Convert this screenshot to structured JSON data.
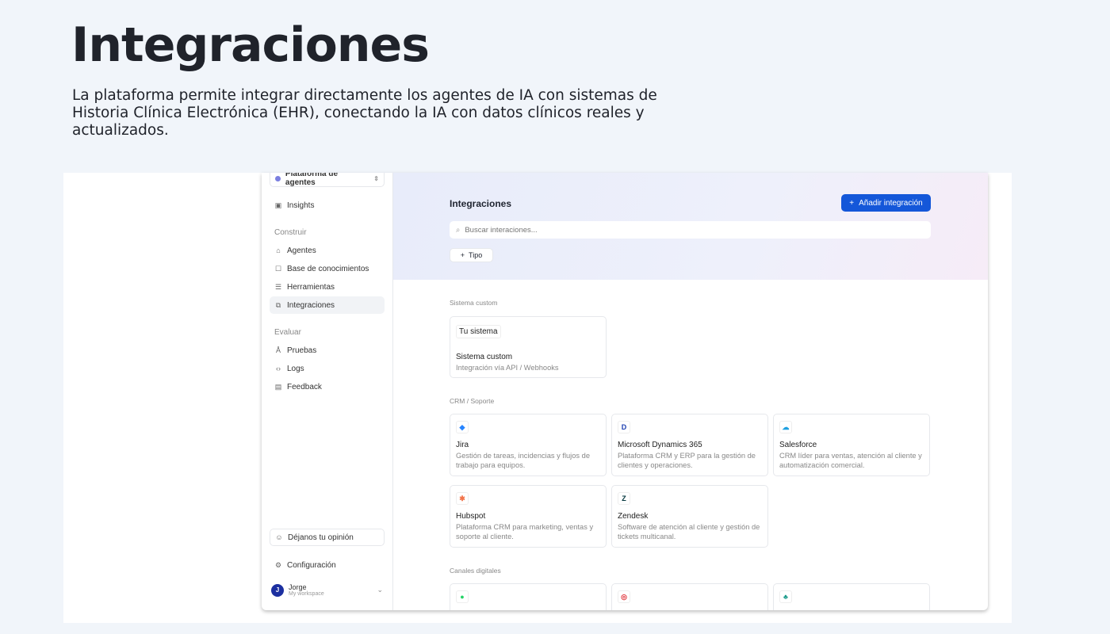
{
  "slide": {
    "title": "Integraciones",
    "description": "La plataforma permite integrar directamente los agentes de IA con sistemas de Historia Clínica Electrónica (EHR), conectando la IA con datos clínicos reales y actualizados."
  },
  "sidebar": {
    "workspace": "Plataforma de agentes",
    "insights": "Insights",
    "sections": [
      {
        "label": "Construir",
        "items": [
          "Agentes",
          "Base de conocimientos",
          "Herramientas",
          "Integraciones"
        ]
      },
      {
        "label": "Evaluar",
        "items": [
          "Pruebas",
          "Logs",
          "Feedback"
        ]
      }
    ],
    "active": "Integraciones",
    "feedback": "Déjanos tu opinión",
    "settings": "Configuración",
    "user": {
      "name": "Jorge",
      "initial": "J",
      "workspace": "My workspace"
    }
  },
  "main": {
    "title": "Integraciones",
    "add_button": "Añadir integración",
    "search_placeholder": "Buscar interaciones...",
    "filter": "Tipo",
    "groups": [
      {
        "label": "Sistema custom",
        "cards": [
          {
            "tag": "Tu sistema",
            "name": "Sistema custom",
            "desc": "Integración vía API / Webhooks"
          }
        ]
      },
      {
        "label": "CRM / Soporte",
        "cards": [
          {
            "icon": "jira-icon",
            "name": "Jira",
            "desc": "Gestión de tareas, incidencias y flujos de trabajo para equipos.",
            "color": "#2684ff"
          },
          {
            "icon": "dynamics-icon",
            "name": "Microsoft Dynamics 365",
            "desc": "Plataforma CRM y ERP para la gestión de clientes y operaciones.",
            "color": "#1d3fb0"
          },
          {
            "icon": "salesforce-icon",
            "name": "Salesforce",
            "desc": "CRM líder para ventas, atención al cliente y automatización comercial.",
            "color": "#1ea0e0"
          },
          {
            "icon": "hubspot-icon",
            "name": "Hubspot",
            "desc": "Plataforma CRM para marketing, ventas y soporte al cliente.",
            "color": "#f2744a"
          },
          {
            "icon": "zendesk-icon",
            "name": "Zendesk",
            "desc": "Software de atención al cliente y gestión de tickets multicanal.",
            "color": "#03363d"
          }
        ]
      },
      {
        "label": "Canales digitales",
        "cards": [
          {
            "icon": "whatsapp-icon",
            "color": "#25d366"
          },
          {
            "icon": "channel-icon",
            "color": "#e0333a"
          },
          {
            "icon": "cloud-icon",
            "color": "#1a9a8a"
          }
        ]
      }
    ]
  },
  "colors": {
    "accent": "#1457d9",
    "background": "#f1f5fa"
  }
}
